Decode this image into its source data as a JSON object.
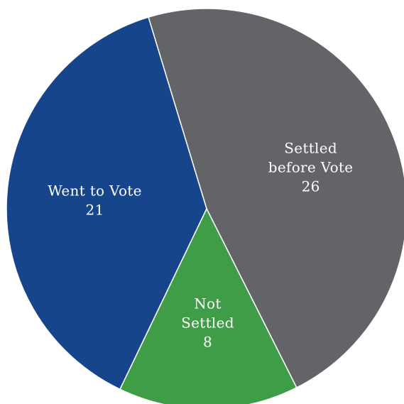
{
  "chart_data": {
    "type": "pie",
    "title": "",
    "categories": [
      "Settled before Vote",
      "Not Settled",
      "Went to Vote"
    ],
    "values": [
      26,
      8,
      21
    ],
    "label_lines": [
      [
        "Settled",
        "before Vote",
        "26"
      ],
      [
        "Not",
        "Settled",
        "8"
      ],
      [
        "Went to Vote",
        "21"
      ]
    ],
    "colors": [
      "#626468",
      "#3f9d48",
      "#17458b"
    ],
    "legend": "none"
  }
}
